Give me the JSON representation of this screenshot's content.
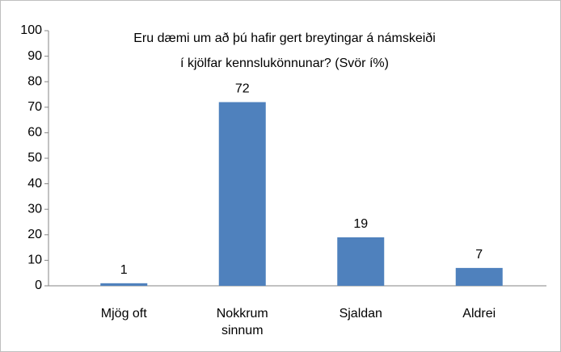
{
  "chart_data": {
    "type": "bar",
    "title": [
      "Eru dæmi um að þú hafir gert breytingar á námskeiði",
      "í kjölfar kennslukönnunar? (Svör í%)"
    ],
    "categories": [
      "Mjög oft",
      "Nokkrum sinnum",
      "Sjaldan",
      "Aldrei"
    ],
    "values": [
      1,
      72,
      19,
      7
    ],
    "color": "#4f81bd",
    "ylim": [
      0,
      100
    ],
    "yticks": [
      0,
      10,
      20,
      30,
      40,
      50,
      60,
      70,
      80,
      90,
      100
    ],
    "grid": false
  }
}
